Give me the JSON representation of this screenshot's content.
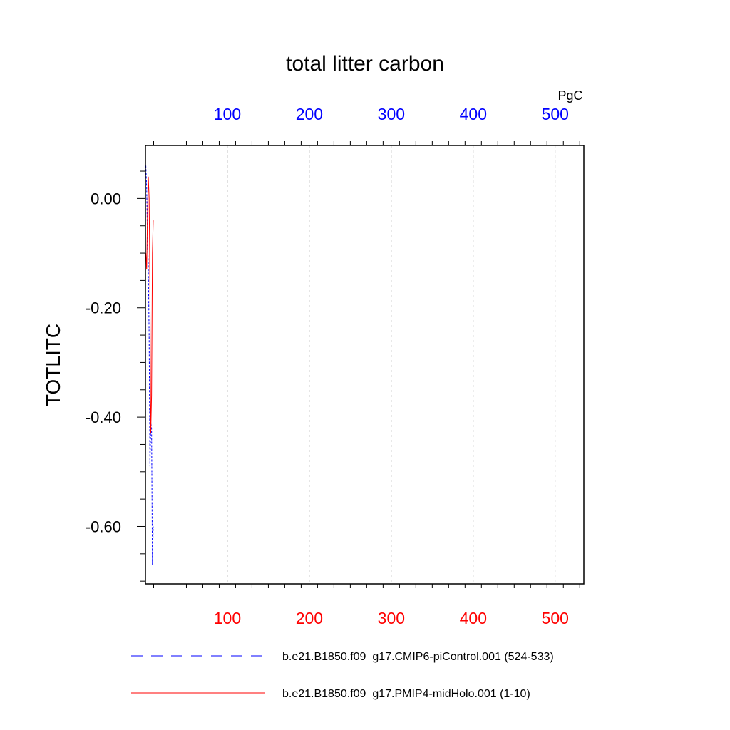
{
  "chart_data": {
    "type": "line",
    "title": "total litter carbon",
    "ylabel": "TOTLITC",
    "top_axis_units": "PgC",
    "xlim": [
      0,
      535
    ],
    "ylim": [
      -0.705,
      0.097
    ],
    "x_ticks": [
      100,
      200,
      300,
      400,
      500
    ],
    "x_ticks_bottom_color": "#ff0000",
    "x_ticks_top_color": "#0000ff",
    "y_ticks": [
      {
        "value": 0.0,
        "label": "0.00"
      },
      {
        "value": -0.2,
        "label": "-0.20"
      },
      {
        "value": -0.4,
        "label": "-0.40"
      },
      {
        "value": -0.6,
        "label": "-0.60"
      }
    ],
    "vertical_grid": true,
    "legend_position": "bottom",
    "series": [
      {
        "name": "b.e21.B1850.f09_g17.CMIP6-piControl.001 (524-533)",
        "color": "#0000ff",
        "dash": "dashed",
        "points": [
          [
            0.5,
            0.06
          ],
          [
            1.5,
            0.02
          ],
          [
            2.5,
            -0.08
          ],
          [
            3.5,
            -0.12
          ],
          [
            4.5,
            -0.25
          ],
          [
            5.5,
            -0.49
          ],
          [
            6.5,
            -0.41
          ],
          [
            7.5,
            -0.42
          ],
          [
            8.5,
            -0.67
          ],
          [
            9.5,
            -0.6
          ]
        ]
      },
      {
        "name": "b.e21.B1850.f09_g17.PMIP4-midHolo.001 (1-10)",
        "color": "#ff0000",
        "dash": "solid",
        "points": [
          [
            0.5,
            -0.1
          ],
          [
            1.5,
            -0.13
          ],
          [
            2.5,
            -0.03
          ],
          [
            3.5,
            0.04
          ],
          [
            4.5,
            0.0
          ],
          [
            5.5,
            -0.16
          ],
          [
            6.5,
            -0.43
          ],
          [
            7.5,
            -0.36
          ],
          [
            8.5,
            -0.1
          ],
          [
            9.5,
            -0.04
          ]
        ]
      }
    ]
  }
}
